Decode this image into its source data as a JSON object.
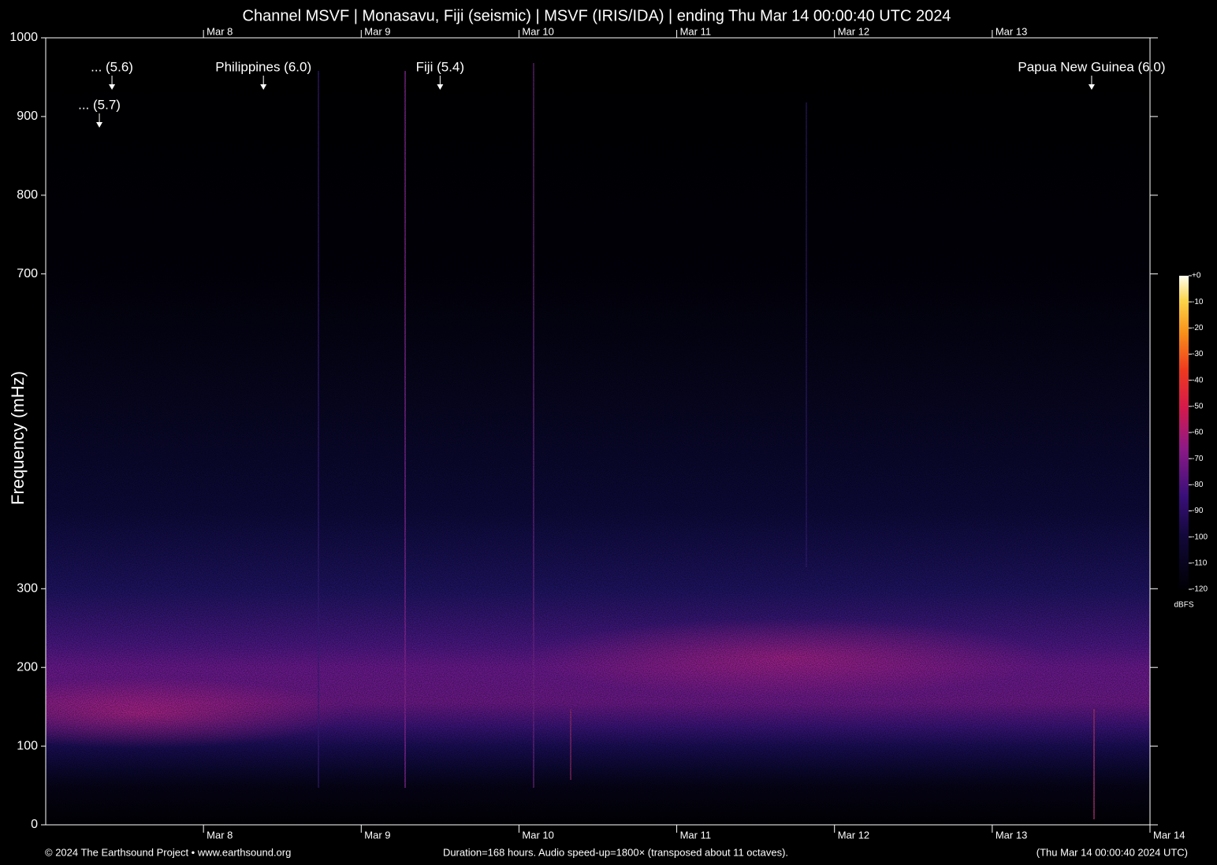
{
  "chart_data": {
    "type": "spectrogram",
    "title": "Channel MSVF | Monasavu, Fiji (seismic) | MSVF (IRIS/IDA) | ending Thu Mar 14 00:00:40 UTC 2024",
    "ylabel": "Frequency (mHz)",
    "ylim": [
      0,
      1000
    ],
    "yticks": [
      0,
      100,
      200,
      300,
      700,
      800,
      900,
      1000
    ],
    "xlim": [
      7,
      14
    ],
    "xticks": [
      {
        "value": 8,
        "label": "Mar 8"
      },
      {
        "value": 9,
        "label": "Mar 9"
      },
      {
        "value": 10,
        "label": "Mar 10"
      },
      {
        "value": 11,
        "label": "Mar 11"
      },
      {
        "value": 12,
        "label": "Mar 12"
      },
      {
        "value": 13,
        "label": "Mar 13"
      },
      {
        "value": 14,
        "label": "Mar 14"
      }
    ],
    "annotations": [
      {
        "label": "Philippines (6.0)",
        "x": 8.38
      },
      {
        "label": "Fiji (5.4)",
        "x": 9.5
      },
      {
        "label": "Papua New Guinea (6.0)",
        "x": 13.63
      },
      {
        "label": "... (5.6)",
        "x": 7.42
      },
      {
        "label": "... (5.7)",
        "x": 7.34
      }
    ],
    "colorbar": {
      "label": "dBFS",
      "lim": [
        -120,
        0
      ],
      "ticks": [
        {
          "value": 0,
          "label": "+0"
        },
        -10,
        -20,
        -30,
        -40,
        -50,
        -60,
        -70,
        -80,
        -90,
        -100,
        -110,
        -120
      ]
    }
  },
  "footer": {
    "left": "© 2024 The Earthsound Project • www.earthsound.org",
    "center": "Duration=168 hours. Audio speed-up=1800× (transposed about 11 octaves).",
    "right": "(Thu Mar 14 00:00:40 2024 UTC)"
  }
}
